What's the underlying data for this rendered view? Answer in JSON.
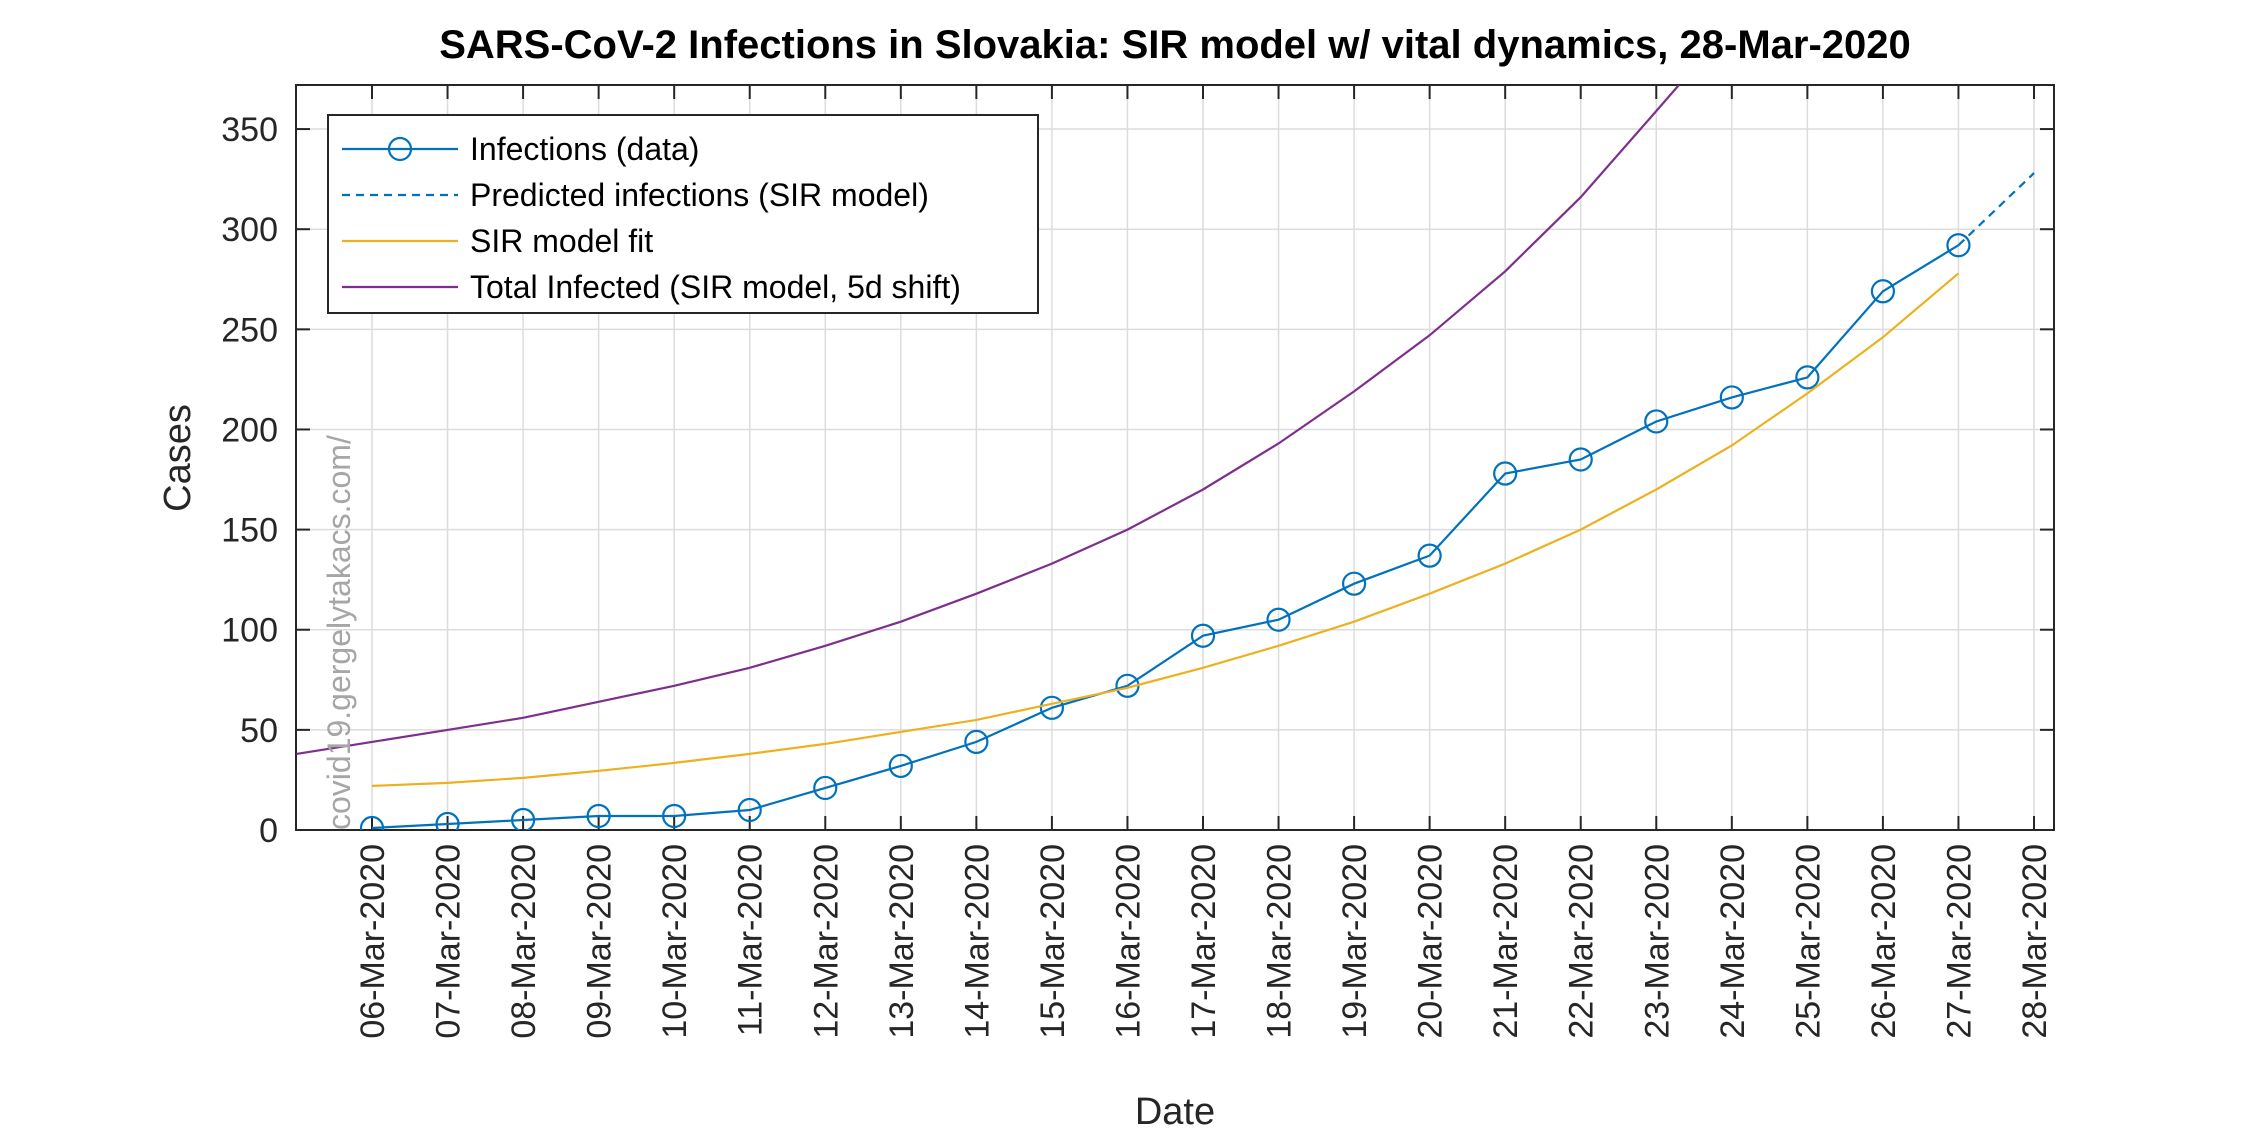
{
  "chart_data": {
    "type": "line",
    "title": "SARS-CoV-2 Infections in Slovakia: SIR model w/ vital dynamics, 28-Mar-2020",
    "xlabel": "Date",
    "ylabel": "Cases",
    "categories": [
      "06-Mar-2020",
      "07-Mar-2020",
      "08-Mar-2020",
      "09-Mar-2020",
      "10-Mar-2020",
      "11-Mar-2020",
      "12-Mar-2020",
      "13-Mar-2020",
      "14-Mar-2020",
      "15-Mar-2020",
      "16-Mar-2020",
      "17-Mar-2020",
      "18-Mar-2020",
      "19-Mar-2020",
      "20-Mar-2020",
      "21-Mar-2020",
      "22-Mar-2020",
      "23-Mar-2020",
      "24-Mar-2020",
      "25-Mar-2020",
      "26-Mar-2020",
      "27-Mar-2020",
      "28-Mar-2020"
    ],
    "ylim": [
      0,
      372
    ],
    "yticks": [
      0,
      50,
      100,
      150,
      200,
      250,
      300,
      350
    ],
    "grid": true,
    "legend_position": "top-left",
    "watermark": "covid19.gergelytakacs.com/",
    "series": [
      {
        "name": "Infections (data)",
        "style": "solid-circle-markers",
        "color": "#0072BD",
        "x": [
          "06-Mar-2020",
          "07-Mar-2020",
          "08-Mar-2020",
          "09-Mar-2020",
          "10-Mar-2020",
          "11-Mar-2020",
          "12-Mar-2020",
          "13-Mar-2020",
          "14-Mar-2020",
          "15-Mar-2020",
          "16-Mar-2020",
          "17-Mar-2020",
          "18-Mar-2020",
          "19-Mar-2020",
          "20-Mar-2020",
          "21-Mar-2020",
          "22-Mar-2020",
          "23-Mar-2020",
          "24-Mar-2020",
          "25-Mar-2020",
          "26-Mar-2020",
          "27-Mar-2020"
        ],
        "values": [
          1,
          3,
          5,
          7,
          7,
          10,
          21,
          32,
          44,
          61,
          72,
          97,
          105,
          123,
          137,
          178,
          185,
          204,
          216,
          226,
          269,
          292
        ]
      },
      {
        "name": "Predicted infections (SIR model)",
        "style": "dashed",
        "color": "#0072BD",
        "x": [
          "27-Mar-2020",
          "28-Mar-2020"
        ],
        "values": [
          292,
          328
        ]
      },
      {
        "name": "SIR model fit",
        "style": "solid",
        "color": "#EDB120",
        "x": [
          "06-Mar-2020",
          "07-Mar-2020",
          "08-Mar-2020",
          "09-Mar-2020",
          "10-Mar-2020",
          "11-Mar-2020",
          "12-Mar-2020",
          "13-Mar-2020",
          "14-Mar-2020",
          "15-Mar-2020",
          "16-Mar-2020",
          "17-Mar-2020",
          "18-Mar-2020",
          "19-Mar-2020",
          "20-Mar-2020",
          "21-Mar-2020",
          "22-Mar-2020",
          "23-Mar-2020",
          "24-Mar-2020",
          "25-Mar-2020",
          "26-Mar-2020",
          "27-Mar-2020"
        ],
        "values": [
          22,
          23.5,
          26,
          29.5,
          33.5,
          38,
          43,
          49,
          55,
          63,
          71,
          81,
          92,
          104,
          118,
          133,
          150,
          170,
          192,
          218,
          246,
          278
        ]
      },
      {
        "name": "Total Infected (SIR model, 5d shift)",
        "style": "solid",
        "color": "#7E2F8E",
        "x": [
          "05-Mar-2020",
          "06-Mar-2020",
          "07-Mar-2020",
          "08-Mar-2020",
          "09-Mar-2020",
          "10-Mar-2020",
          "11-Mar-2020",
          "12-Mar-2020",
          "13-Mar-2020",
          "14-Mar-2020",
          "15-Mar-2020",
          "16-Mar-2020",
          "17-Mar-2020",
          "18-Mar-2020",
          "19-Mar-2020",
          "20-Mar-2020",
          "21-Mar-2020",
          "22-Mar-2020",
          "23-Mar-2020",
          "23.3-Mar-2020"
        ],
        "values": [
          38,
          44,
          50,
          56,
          64,
          72,
          81,
          92,
          104,
          118,
          133,
          150,
          170,
          193,
          219,
          247,
          279,
          316,
          359,
          372
        ]
      }
    ]
  }
}
